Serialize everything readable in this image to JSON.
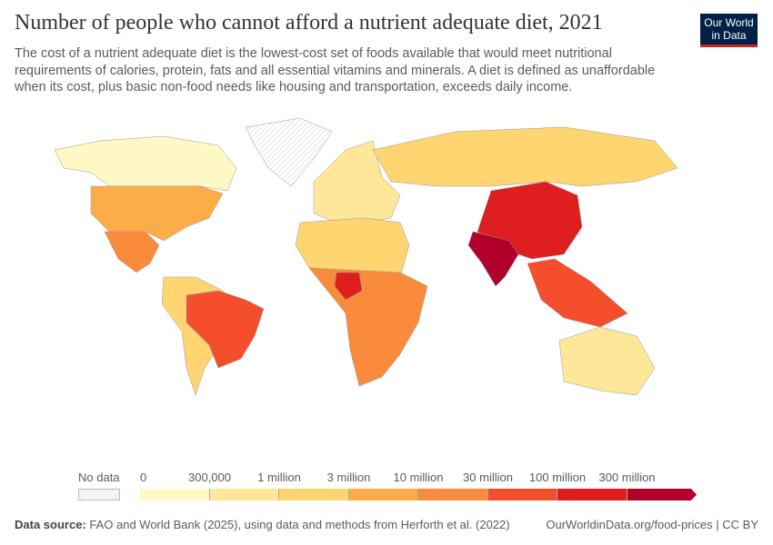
{
  "header": {
    "title": "Number of people who cannot afford a nutrient adequate diet, 2021",
    "subtitle": "The cost of a nutrient adequate diet is the lowest-cost set of foods available that would meet nutritional requirements of calories, protein, fats and all essential vitamins and minerals. A diet is defined as unaffordable when its cost, plus basic non-food needs like housing and transportation, exceeds daily income.",
    "logo": "Our World in Data"
  },
  "legend": {
    "no_data_label": "No data",
    "tick_labels": [
      "0",
      "300,000",
      "1 million",
      "3 million",
      "10 million",
      "30 million",
      "100 million",
      "300 million"
    ],
    "bin_colors": [
      "#fef9c4",
      "#fee799",
      "#fed571",
      "#fdad47",
      "#fb8b3c",
      "#f44e2d",
      "#df1e1f",
      "#b3002b"
    ]
  },
  "map": {
    "regions": [
      {
        "name": "North America",
        "color": "#fef9c4"
      },
      {
        "name": "United States",
        "color": "#fdad47"
      },
      {
        "name": "Mexico",
        "color": "#fb8b3c"
      },
      {
        "name": "Brazil",
        "color": "#f44e2d"
      },
      {
        "name": "South America",
        "color": "#fed571"
      },
      {
        "name": "Europe",
        "color": "#fee799"
      },
      {
        "name": "Russia",
        "color": "#fed571"
      },
      {
        "name": "China",
        "color": "#df1e1f"
      },
      {
        "name": "India",
        "color": "#b3002b"
      },
      {
        "name": "Nigeria",
        "color": "#df1e1f"
      },
      {
        "name": "Africa",
        "color": "#fb8b3c"
      },
      {
        "name": "North Africa",
        "color": "#fed571"
      },
      {
        "name": "Southeast Asia",
        "color": "#f44e2d"
      },
      {
        "name": "Australia",
        "color": "#fee799"
      },
      {
        "name": "Greenland",
        "color": "nodata"
      }
    ]
  },
  "footer": {
    "source_label": "Data source:",
    "source_text": "FAO and World Bank (2025), using data and methods from Herforth et al. (2022)",
    "right_text": "OurWorldinData.org/food-prices | CC BY"
  }
}
